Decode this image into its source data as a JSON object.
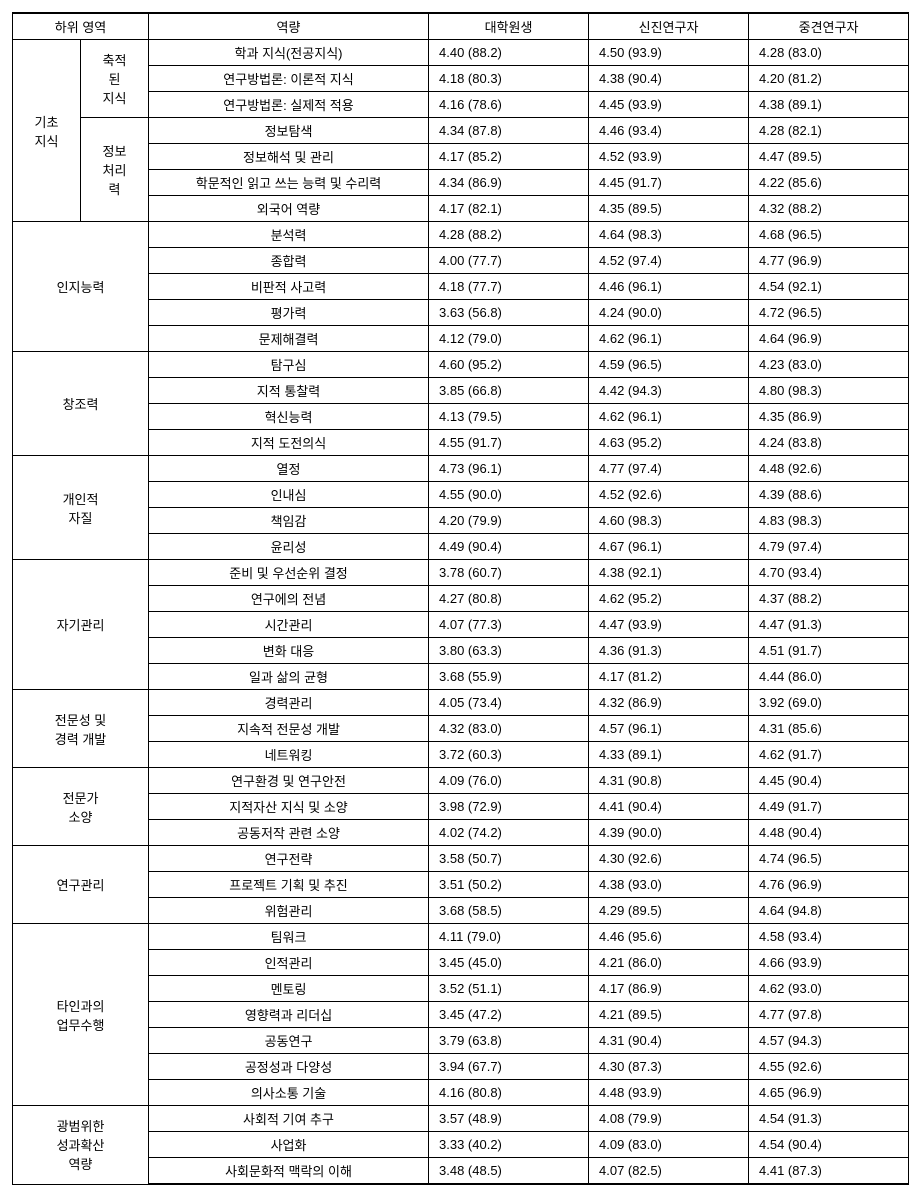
{
  "headers": {
    "area": "하위 영역",
    "competency": "역량",
    "grad": "대학원생",
    "junior": "신진연구자",
    "senior": "중견연구자"
  },
  "rows": [
    {
      "area": "기초\n지식",
      "sub": "축적\n된\n지식",
      "comp": "학과 지식(전공지식)",
      "g": "4.40 (88.2)",
      "j": "4.50 (93.9)",
      "s": "4.28 (83.0)"
    },
    {
      "comp": "연구방법론: 이론적 지식",
      "g": "4.18 (80.3)",
      "j": "4.38 (90.4)",
      "s": "4.20 (81.2)"
    },
    {
      "comp": "연구방법론: 실제적 적용",
      "g": "4.16 (78.6)",
      "j": "4.45 (93.9)",
      "s": "4.38 (89.1)"
    },
    {
      "sub": "정보\n처리\n력",
      "comp": "정보탐색",
      "g": "4.34 (87.8)",
      "j": "4.46 (93.4)",
      "s": "4.28 (82.1)"
    },
    {
      "comp": "정보해석 및 관리",
      "g": "4.17 (85.2)",
      "j": "4.52 (93.9)",
      "s": "4.47 (89.5)"
    },
    {
      "comp": "학문적인 읽고 쓰는 능력 및 수리력",
      "g": "4.34 (86.9)",
      "j": "4.45 (91.7)",
      "s": "4.22 (85.6)"
    },
    {
      "comp": "외국어 역량",
      "g": "4.17 (82.1)",
      "j": "4.35 (89.5)",
      "s": "4.32 (88.2)"
    },
    {
      "area": "인지능력",
      "comp": "분석력",
      "g": "4.28 (88.2)",
      "j": "4.64 (98.3)",
      "s": "4.68 (96.5)"
    },
    {
      "comp": "종합력",
      "g": "4.00 (77.7)",
      "j": "4.52 (97.4)",
      "s": "4.77 (96.9)"
    },
    {
      "comp": "비판적 사고력",
      "g": "4.18 (77.7)",
      "j": "4.46 (96.1)",
      "s": "4.54 (92.1)"
    },
    {
      "comp": "평가력",
      "g": "3.63 (56.8)",
      "j": "4.24 (90.0)",
      "s": "4.72 (96.5)"
    },
    {
      "comp": "문제해결력",
      "g": "4.12 (79.0)",
      "j": "4.62 (96.1)",
      "s": "4.64 (96.9)"
    },
    {
      "area": "창조력",
      "comp": "탐구심",
      "g": "4.60 (95.2)",
      "j": "4.59 (96.5)",
      "s": "4.23 (83.0)"
    },
    {
      "comp": "지적 통찰력",
      "g": "3.85 (66.8)",
      "j": "4.42 (94.3)",
      "s": "4.80 (98.3)"
    },
    {
      "comp": "혁신능력",
      "g": "4.13 (79.5)",
      "j": "4.62 (96.1)",
      "s": "4.35 (86.9)"
    },
    {
      "comp": "지적 도전의식",
      "g": "4.55 (91.7)",
      "j": "4.63 (95.2)",
      "s": "4.24 (83.8)"
    },
    {
      "area": "개인적\n자질",
      "comp": "열정",
      "g": "4.73 (96.1)",
      "j": "4.77 (97.4)",
      "s": "4.48 (92.6)"
    },
    {
      "comp": "인내심",
      "g": "4.55 (90.0)",
      "j": "4.52 (92.6)",
      "s": "4.39 (88.6)"
    },
    {
      "comp": "책임감",
      "g": "4.20 (79.9)",
      "j": "4.60 (98.3)",
      "s": "4.83 (98.3)"
    },
    {
      "comp": "윤리성",
      "g": "4.49 (90.4)",
      "j": "4.67 (96.1)",
      "s": "4.79 (97.4)"
    },
    {
      "area": "자기관리",
      "comp": "준비 및 우선순위 결정",
      "g": "3.78 (60.7)",
      "j": "4.38 (92.1)",
      "s": "4.70 (93.4)"
    },
    {
      "comp": "연구에의 전념",
      "g": "4.27 (80.8)",
      "j": "4.62 (95.2)",
      "s": "4.37 (88.2)"
    },
    {
      "comp": "시간관리",
      "g": "4.07 (77.3)",
      "j": "4.47 (93.9)",
      "s": "4.47 (91.3)"
    },
    {
      "comp": "변화 대응",
      "g": "3.80 (63.3)",
      "j": "4.36 (91.3)",
      "s": "4.51 (91.7)"
    },
    {
      "comp": "일과 삶의 균형",
      "g": "3.68 (55.9)",
      "j": "4.17 (81.2)",
      "s": "4.44 (86.0)"
    },
    {
      "area": "전문성 및\n경력 개발",
      "comp": "경력관리",
      "g": "4.05 (73.4)",
      "j": "4.32 (86.9)",
      "s": "3.92 (69.0)"
    },
    {
      "comp": "지속적 전문성 개발",
      "g": "4.32 (83.0)",
      "j": "4.57 (96.1)",
      "s": "4.31 (85.6)"
    },
    {
      "comp": "네트워킹",
      "g": "3.72 (60.3)",
      "j": "4.33 (89.1)",
      "s": "4.62 (91.7)"
    },
    {
      "area": "전문가\n소양",
      "comp": "연구환경 및 연구안전",
      "g": "4.09 (76.0)",
      "j": "4.31 (90.8)",
      "s": "4.45 (90.4)"
    },
    {
      "comp": "지적자산 지식 및 소양",
      "g": "3.98 (72.9)",
      "j": "4.41 (90.4)",
      "s": "4.49 (91.7)"
    },
    {
      "comp": "공동저작 관련 소양",
      "g": "4.02 (74.2)",
      "j": "4.39 (90.0)",
      "s": "4.48 (90.4)"
    },
    {
      "area": "연구관리",
      "comp": "연구전략",
      "g": "3.58 (50.7)",
      "j": "4.30 (92.6)",
      "s": "4.74 (96.5)"
    },
    {
      "comp": "프로젝트 기획 및 추진",
      "g": "3.51 (50.2)",
      "j": "4.38 (93.0)",
      "s": "4.76 (96.9)"
    },
    {
      "comp": "위험관리",
      "g": "3.68 (58.5)",
      "j": "4.29 (89.5)",
      "s": "4.64 (94.8)"
    },
    {
      "area": "타인과의\n업무수행",
      "comp": "팀워크",
      "g": "4.11 (79.0)",
      "j": "4.46 (95.6)",
      "s": "4.58 (93.4)"
    },
    {
      "comp": "인적관리",
      "g": "3.45 (45.0)",
      "j": "4.21 (86.0)",
      "s": "4.66 (93.9)"
    },
    {
      "comp": "멘토링",
      "g": "3.52 (51.1)",
      "j": "4.17 (86.9)",
      "s": "4.62 (93.0)"
    },
    {
      "comp": "영향력과 리더십",
      "g": "3.45 (47.2)",
      "j": "4.21 (89.5)",
      "s": "4.77 (97.8)"
    },
    {
      "comp": "공동연구",
      "g": "3.79 (63.8)",
      "j": "4.31 (90.4)",
      "s": "4.57 (94.3)"
    },
    {
      "comp": "공정성과 다양성",
      "g": "3.94 (67.7)",
      "j": "4.30 (87.3)",
      "s": "4.55 (92.6)"
    },
    {
      "comp": "의사소통 기술",
      "g": "4.16 (80.8)",
      "j": "4.48 (93.9)",
      "s": "4.65 (96.9)"
    },
    {
      "area": "광범위한\n성과확산\n역량",
      "comp": "사회적 기여 추구",
      "g": "3.57 (48.9)",
      "j": "4.08 (79.9)",
      "s": "4.54 (91.3)"
    },
    {
      "comp": "사업화",
      "g": "3.33 (40.2)",
      "j": "4.09 (83.0)",
      "s": "4.54 (90.4)"
    },
    {
      "comp": "사회문화적 맥락의 이해",
      "g": "3.48 (48.5)",
      "j": "4.07 (82.5)",
      "s": "4.41 (87.3)"
    }
  ],
  "spans": {
    "areaSpans": [
      7,
      5,
      4,
      4,
      5,
      3,
      3,
      3,
      7,
      3
    ],
    "subSpans": [
      3,
      4
    ]
  }
}
